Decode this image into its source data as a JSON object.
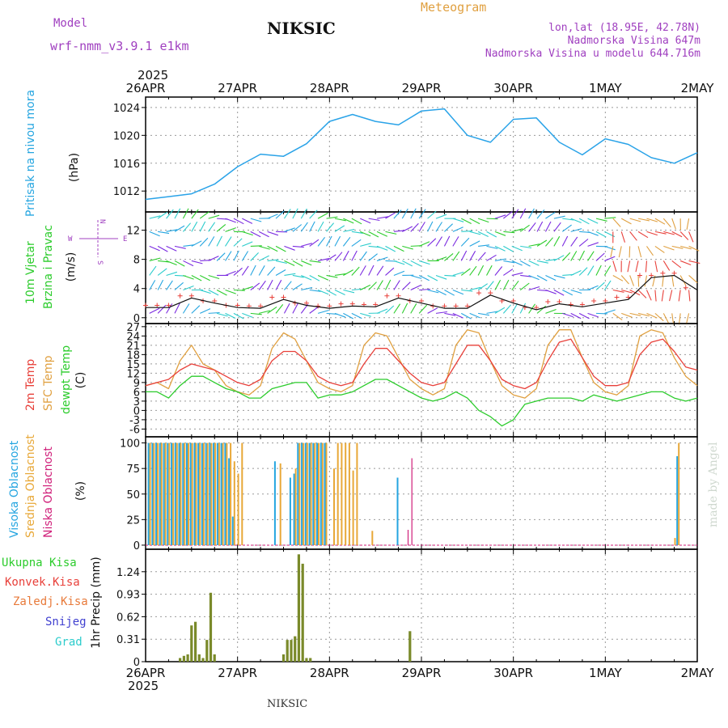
{
  "header": {
    "model_label": "Model",
    "model_name": "wrf-nmm_v3.9.1  e1km",
    "station_title": "NIKSIC",
    "meteogram_label": "Meteogram",
    "coords": "lon,lat (18.95E, 42.78N)",
    "altitude": "Nadmorska Visina 647m",
    "model_altitude": "Nadmorska Visina u modelu 644.716m",
    "footer_station": "NIKSIC",
    "credit": "made by Angel"
  },
  "colors": {
    "pressure": "#2aa3e8",
    "temp2m": "#e8403a",
    "sfc_temp": "#e0a040",
    "dewpt": "#2ccc2c",
    "high_cloud": "#25a5e0",
    "mid_cloud": "#e8a838",
    "low_cloud": "#d0207a",
    "total_precip": "#7a8a2a",
    "purple_text": "#a040c0",
    "grid": "#999999"
  },
  "chart_data": [
    {
      "type": "line",
      "id": "pressure",
      "ylabel_side": "Pritisak na nivou mora",
      "ylabel": "(hPa)",
      "ylim": [
        1009,
        1025.5
      ],
      "yticks": [
        1012,
        1016,
        1020,
        1024
      ],
      "x_day_labels": [
        "26APR",
        "27APR",
        "28APR",
        "29APR",
        "30APR",
        "1MAY",
        "2MAY"
      ],
      "year_label": "2025",
      "x_hours": [
        0,
        6,
        12,
        18,
        24,
        30,
        36,
        42,
        48,
        54,
        60,
        66,
        72,
        78,
        84,
        90,
        96,
        102,
        108,
        114,
        120,
        126,
        132,
        138,
        144
      ],
      "series": [
        {
          "name": "Pritisak na nivou mora",
          "values": [
            1010.8,
            1011.2,
            1011.6,
            1013.0,
            1015.5,
            1017.3,
            1017.0,
            1018.8,
            1022.0,
            1023.0,
            1022.0,
            1021.5,
            1023.5,
            1023.8,
            1020.0,
            1019.0,
            1022.3,
            1022.5,
            1019.0,
            1017.2,
            1019.5,
            1018.7,
            1016.8,
            1016.0,
            1017.5
          ]
        }
      ]
    },
    {
      "type": "line",
      "id": "wind",
      "ylabel_side": [
        "10m Vjetar",
        "Brzina i Pravac"
      ],
      "ylabel": "(m/s)",
      "ylim": [
        -0.8,
        14.5
      ],
      "yticks": [
        0,
        4,
        8,
        12
      ],
      "compass": {
        "n": "N",
        "s": "S",
        "e": "E",
        "w": "W"
      },
      "x_hours": [
        0,
        6,
        12,
        18,
        24,
        30,
        36,
        42,
        48,
        54,
        60,
        66,
        72,
        78,
        84,
        90,
        96,
        102,
        108,
        114,
        120,
        126,
        132,
        138,
        144
      ],
      "series": [
        {
          "name": "10m Vjetar",
          "values": [
            1.4,
            1.4,
            2.7,
            2.0,
            1.4,
            1.3,
            2.5,
            1.7,
            1.3,
            1.6,
            1.5,
            2.7,
            2.0,
            1.3,
            1.3,
            3.1,
            2.0,
            1.1,
            1.9,
            1.5,
            2.0,
            2.5,
            5.5,
            5.8,
            3.8
          ]
        }
      ]
    },
    {
      "type": "line",
      "id": "temperature",
      "ylabel_side": [
        "2m Temp",
        "SFC Temp",
        "dewpt Temp"
      ],
      "ylabel": "(C)",
      "ylim": [
        -8.5,
        28
      ],
      "yticks": [
        -6,
        -3,
        0,
        3,
        6,
        9,
        12,
        15,
        18,
        21,
        24,
        27
      ],
      "x_hours": [
        0,
        3,
        6,
        9,
        12,
        15,
        18,
        21,
        24,
        27,
        30,
        33,
        36,
        39,
        42,
        45,
        48,
        51,
        54,
        57,
        60,
        63,
        66,
        69,
        72,
        75,
        78,
        81,
        84,
        87,
        90,
        93,
        96,
        99,
        102,
        105,
        108,
        111,
        114,
        117,
        120,
        123,
        126,
        129,
        132,
        135,
        138,
        141,
        144
      ],
      "series": [
        {
          "name": "2m Temp",
          "values": [
            8,
            9,
            10,
            13,
            15,
            14,
            13,
            11,
            9,
            8,
            10,
            16,
            19,
            19,
            16,
            11,
            9,
            8,
            9,
            15,
            20,
            20,
            16,
            12,
            9,
            8,
            9,
            15,
            21,
            21,
            16,
            10,
            8,
            7,
            9,
            16,
            22,
            23,
            17,
            11,
            8,
            8,
            9,
            18,
            22,
            23,
            19,
            14,
            13
          ]
        },
        {
          "name": "SFC Temp",
          "values": [
            8,
            9,
            7,
            16,
            21,
            15,
            13,
            8,
            6,
            5,
            8,
            20,
            25,
            23,
            16,
            9,
            7,
            6,
            8,
            21,
            25,
            24,
            17,
            10,
            7,
            5,
            7,
            21,
            26,
            25,
            16,
            8,
            5,
            4,
            7,
            21,
            26,
            26,
            17,
            9,
            6,
            5,
            8,
            24,
            26,
            25,
            17,
            11,
            8
          ]
        },
        {
          "name": "dewpt Temp",
          "values": [
            6,
            6,
            4,
            8,
            11,
            11,
            9,
            7,
            6,
            4,
            4,
            7,
            8,
            9,
            9,
            4,
            5,
            5,
            6,
            8,
            10,
            10,
            8,
            6,
            4,
            3,
            4,
            6,
            4,
            0,
            -2,
            -5,
            -3,
            2,
            3,
            4,
            4,
            4,
            3,
            5,
            4,
            3,
            4,
            5,
            6,
            6,
            4,
            3,
            4
          ]
        }
      ]
    },
    {
      "type": "bar",
      "id": "cloud",
      "ylabel_side": [
        "Visoka Oblacnost",
        "Srednja Oblacnost",
        "Niska Oblacnost"
      ],
      "ylabel": "(%)",
      "ylim": [
        -4,
        106
      ],
      "yticks": [
        0,
        25,
        50,
        75,
        100
      ],
      "x_hours": [
        0,
        1,
        2,
        3,
        4,
        5,
        6,
        7,
        8,
        9,
        10,
        11,
        12,
        13,
        14,
        15,
        16,
        17,
        18,
        19,
        20,
        21,
        22,
        23,
        24,
        25,
        26,
        27,
        28,
        29,
        30,
        31,
        32,
        33,
        34,
        35,
        36,
        37,
        38,
        39,
        40,
        41,
        42,
        43,
        44,
        45,
        46,
        47,
        48,
        49,
        50,
        51,
        52,
        53,
        54,
        55,
        56,
        57,
        58,
        59,
        60,
        61,
        62,
        63,
        64,
        65,
        66,
        67,
        68,
        69,
        70,
        71,
        72,
        73,
        74,
        75,
        76,
        77,
        78,
        79,
        80,
        81,
        82,
        83,
        84,
        85,
        86,
        87,
        88,
        89,
        90,
        91,
        92,
        93,
        94,
        95,
        96,
        97,
        98,
        99,
        100,
        101,
        102,
        103,
        104,
        105,
        106,
        107,
        108,
        109,
        110,
        111,
        112,
        113,
        114,
        115,
        116,
        117,
        118,
        119,
        120,
        121,
        122,
        123,
        124,
        125,
        126,
        127,
        128,
        129,
        130,
        131,
        132,
        133,
        134,
        135,
        136,
        137,
        138,
        139,
        140,
        141,
        142,
        143,
        144
      ],
      "series": [
        {
          "name": "Visoka Oblacnost",
          "values": [
            0,
            100,
            100,
            100,
            100,
            100,
            100,
            100,
            100,
            100,
            100,
            100,
            100,
            100,
            100,
            100,
            100,
            100,
            100,
            100,
            100,
            100,
            85,
            28,
            0,
            0,
            0,
            0,
            0,
            0,
            0,
            0,
            0,
            0,
            82,
            0,
            0,
            0,
            66,
            70,
            100,
            100,
            100,
            100,
            100,
            100,
            100,
            100,
            0,
            0,
            0,
            0,
            0,
            0,
            0,
            0,
            0,
            0,
            0,
            0,
            0,
            0,
            0,
            0,
            0,
            0,
            66,
            0,
            0,
            0,
            0,
            0,
            0,
            0,
            0,
            0,
            0,
            0,
            0,
            0,
            0,
            0,
            0,
            0,
            0,
            0,
            0,
            0,
            0,
            0,
            0,
            0,
            0,
            0,
            0,
            0,
            0,
            0,
            0,
            0,
            0,
            0,
            0,
            0,
            0,
            0,
            0,
            0,
            0,
            0,
            0,
            0,
            0,
            0,
            0,
            0,
            0,
            0,
            0,
            0,
            0,
            0,
            0,
            0,
            0,
            0,
            0,
            0,
            0,
            0,
            0,
            0,
            0,
            0,
            0,
            0,
            0,
            0,
            0,
            87,
            0,
            0,
            0,
            0,
            0
          ]
        },
        {
          "name": "Srednja Oblacnost",
          "values": [
            0,
            100,
            100,
            100,
            100,
            100,
            100,
            100,
            100,
            100,
            100,
            100,
            100,
            100,
            100,
            100,
            100,
            100,
            100,
            100,
            100,
            100,
            100,
            82,
            70,
            100,
            0,
            0,
            0,
            0,
            0,
            0,
            0,
            0,
            0,
            80,
            0,
            0,
            0,
            75,
            100,
            100,
            100,
            100,
            100,
            100,
            100,
            100,
            0,
            75,
            100,
            100,
            100,
            100,
            73,
            100,
            0,
            0,
            0,
            14,
            0,
            0,
            0,
            0,
            0,
            0,
            0,
            0,
            0,
            0,
            0,
            0,
            0,
            0,
            0,
            0,
            0,
            0,
            0,
            0,
            0,
            0,
            0,
            0,
            0,
            0,
            0,
            0,
            0,
            0,
            0,
            0,
            0,
            0,
            0,
            0,
            0,
            0,
            0,
            0,
            0,
            0,
            0,
            0,
            0,
            0,
            0,
            0,
            0,
            0,
            0,
            0,
            0,
            0,
            0,
            0,
            0,
            0,
            0,
            0,
            0,
            0,
            0,
            0,
            0,
            0,
            0,
            0,
            0,
            0,
            0,
            0,
            0,
            0,
            0,
            0,
            0,
            0,
            7,
            100,
            0,
            0,
            0,
            0,
            0
          ]
        },
        {
          "name": "Niska Oblacnost",
          "values": [
            0,
            0,
            0,
            0,
            0,
            0,
            0,
            0,
            0,
            0,
            0,
            0,
            0,
            0,
            0,
            0,
            0,
            0,
            0,
            0,
            0,
            0,
            0,
            0,
            0,
            0,
            0,
            0,
            0,
            0,
            0,
            0,
            0,
            0,
            0,
            0,
            0,
            0,
            0,
            0,
            0,
            0,
            0,
            0,
            0,
            0,
            0,
            0,
            0,
            0,
            0,
            0,
            0,
            0,
            0,
            0,
            0,
            0,
            0,
            0,
            0,
            0,
            0,
            0,
            0,
            0,
            0,
            0,
            15,
            85,
            0,
            0,
            0,
            0,
            0,
            0,
            0,
            0,
            0,
            0,
            0,
            0,
            0,
            0,
            0,
            0,
            0,
            0,
            0,
            0,
            0,
            0,
            0,
            0,
            0,
            0,
            0,
            0,
            0,
            0,
            0,
            0,
            0,
            0,
            0,
            0,
            0,
            0,
            0,
            0,
            0,
            0,
            0,
            0,
            0,
            0,
            0,
            0,
            0,
            0,
            0,
            0,
            0,
            0,
            0,
            0,
            0,
            0,
            0,
            0,
            0,
            0,
            0,
            0,
            0,
            0,
            0,
            0,
            0,
            0,
            0,
            0,
            0,
            0,
            0
          ]
        }
      ]
    },
    {
      "type": "bar",
      "id": "precip",
      "legend": [
        "Ukupna Kisa",
        "Konvek.Kisa",
        "Zaledj.Kisa",
        "Snijeg",
        "Grad"
      ],
      "ylabel": "1hr Precip (mm)",
      "ylim": [
        0,
        1.55
      ],
      "yticks": [
        0,
        0.31,
        0.62,
        0.93,
        1.24
      ],
      "x_hours": [
        9,
        10,
        11,
        12,
        13,
        14,
        15,
        16,
        17,
        18,
        36,
        37,
        38,
        39,
        40,
        41,
        42,
        43,
        69
      ],
      "series": [
        {
          "name": "Ukupna Kisa",
          "values": [
            0.05,
            0.08,
            0.1,
            0.5,
            0.55,
            0.1,
            0.05,
            0.3,
            0.95,
            0.1,
            0.1,
            0.3,
            0.3,
            0.35,
            1.48,
            1.35,
            0.05,
            0.05,
            0.42
          ]
        }
      ]
    }
  ]
}
